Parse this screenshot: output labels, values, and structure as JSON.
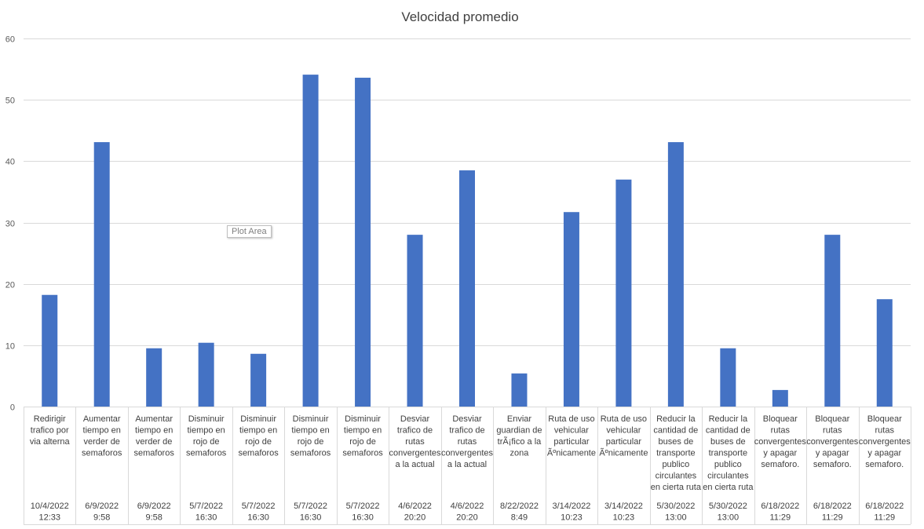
{
  "chart_data": {
    "type": "bar",
    "title": "Velocidad promedio",
    "ylim": [
      0,
      60
    ],
    "yticks": [
      0,
      10,
      20,
      30,
      40,
      50,
      60
    ],
    "grid": true,
    "bar_color": "#4472c4",
    "categories": [
      {
        "action": [
          "Redirigir",
          "trafico por",
          "via alterna"
        ],
        "date": [
          "10/4/2022",
          "12:33"
        ]
      },
      {
        "action": [
          "Aumentar",
          "tiempo en",
          "verder de",
          "semaforos"
        ],
        "date": [
          "6/9/2022",
          "9:58"
        ]
      },
      {
        "action": [
          "Aumentar",
          "tiempo en",
          "verder de",
          "semaforos"
        ],
        "date": [
          "6/9/2022",
          "9:58"
        ]
      },
      {
        "action": [
          "Disminuir",
          "tiempo en",
          "rojo de",
          "semaforos"
        ],
        "date": [
          "5/7/2022",
          "16:30"
        ]
      },
      {
        "action": [
          "Disminuir",
          "tiempo en",
          "rojo de",
          "semaforos"
        ],
        "date": [
          "5/7/2022",
          "16:30"
        ]
      },
      {
        "action": [
          "Disminuir",
          "tiempo en",
          "rojo de",
          "semaforos"
        ],
        "date": [
          "5/7/2022",
          "16:30"
        ]
      },
      {
        "action": [
          "Disminuir",
          "tiempo en",
          "rojo de",
          "semaforos"
        ],
        "date": [
          "5/7/2022",
          "16:30"
        ]
      },
      {
        "action": [
          "Desviar",
          "trafico de",
          "rutas",
          "convergentes",
          "a la actual"
        ],
        "date": [
          "4/6/2022",
          "20:20"
        ]
      },
      {
        "action": [
          "Desviar",
          "trafico de",
          "rutas",
          "convergentes",
          "a la actual"
        ],
        "date": [
          "4/6/2022",
          "20:20"
        ]
      },
      {
        "action": [
          "Enviar",
          "guardian de",
          "trÃ¡fico a la",
          "zona"
        ],
        "date": [
          "8/22/2022",
          "8:49"
        ]
      },
      {
        "action": [
          "Ruta de uso",
          "vehicular",
          "particular",
          "Ãºnicamente"
        ],
        "date": [
          "3/14/2022",
          "10:23"
        ]
      },
      {
        "action": [
          "Ruta de uso",
          "vehicular",
          "particular",
          "Ãºnicamente"
        ],
        "date": [
          "3/14/2022",
          "10:23"
        ]
      },
      {
        "action": [
          "Reducir la",
          "cantidad de",
          "buses de",
          "transporte",
          "publico",
          "circulantes",
          "en cierta ruta"
        ],
        "date": [
          "5/30/2022",
          "13:00"
        ]
      },
      {
        "action": [
          "Reducir la",
          "cantidad de",
          "buses de",
          "transporte",
          "publico",
          "circulantes",
          "en cierta ruta"
        ],
        "date": [
          "5/30/2022",
          "13:00"
        ]
      },
      {
        "action": [
          "Bloquear",
          "rutas",
          "convergentes",
          "y apagar",
          "semaforo."
        ],
        "date": [
          "6/18/2022",
          "11:29"
        ]
      },
      {
        "action": [
          "Bloquear",
          "rutas",
          "convergentes",
          "y apagar",
          "semaforo."
        ],
        "date": [
          "6/18/2022",
          "11:29"
        ]
      },
      {
        "action": [
          "Bloquear",
          "rutas",
          "convergentes",
          "y apagar",
          "semaforo."
        ],
        "date": [
          "6/18/2022",
          "11:29"
        ]
      }
    ],
    "values": [
      18.2,
      43.1,
      9.5,
      10.4,
      8.6,
      54.1,
      53.6,
      28.0,
      38.5,
      5.4,
      31.7,
      37.0,
      43.1,
      9.5,
      2.7,
      28.0,
      17.5
    ]
  },
  "tooltip": {
    "text": "Plot Area"
  }
}
